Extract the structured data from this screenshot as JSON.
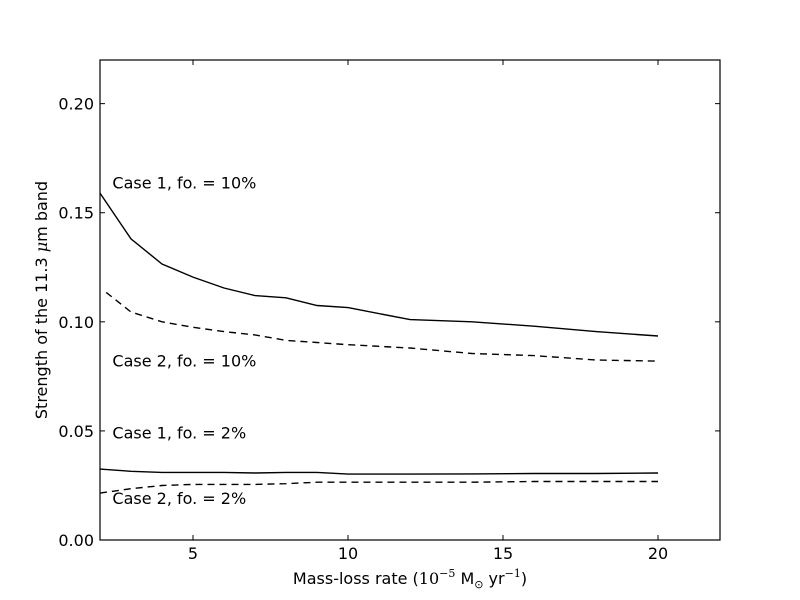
{
  "chart_data": {
    "type": "line",
    "title": "",
    "xlabel": {
      "prefix": "Mass-loss rate (",
      "base": "10",
      "exp": "−5",
      "unit_main": " M",
      "unit_sub": "⊙",
      "unit_yr": " yr",
      "exp2": "−1",
      "suffix": ")"
    },
    "ylabel": {
      "prefix": "Strength of the 11.3 ",
      "mu": "μ",
      "suffix": "m band"
    },
    "xlim": [
      2,
      22
    ],
    "ylim": [
      0,
      0.22
    ],
    "xticks": [
      5,
      10,
      15,
      20
    ],
    "xtick_labels": [
      "5",
      "10",
      "15",
      "20"
    ],
    "yticks": [
      0,
      0.05,
      0.1,
      0.15,
      0.2
    ],
    "ytick_labels": [
      "0.00",
      "0.05",
      "0.10",
      "0.15",
      "0.20"
    ],
    "grid": false,
    "series": [
      {
        "style": "solid",
        "x": [
          2,
          3,
          4,
          5,
          6,
          7,
          8,
          9,
          10,
          12,
          14,
          16,
          18,
          20
        ],
        "y": [
          0.159,
          0.138,
          0.1265,
          0.1205,
          0.1155,
          0.112,
          0.111,
          0.1075,
          0.1065,
          0.101,
          0.1,
          0.098,
          0.0955,
          0.0935
        ]
      },
      {
        "style": "dashed",
        "x": [
          2.2,
          3,
          4,
          5,
          6,
          7,
          8,
          9,
          10,
          12,
          14,
          16,
          18,
          20
        ],
        "y": [
          0.1135,
          0.1045,
          0.1,
          0.0975,
          0.0955,
          0.094,
          0.0915,
          0.0905,
          0.0895,
          0.088,
          0.0855,
          0.0845,
          0.0825,
          0.082
        ]
      },
      {
        "style": "solid",
        "x": [
          2,
          3,
          4,
          5,
          6,
          7,
          8,
          9,
          10,
          12,
          14,
          16,
          18,
          20
        ],
        "y": [
          0.0325,
          0.0315,
          0.031,
          0.031,
          0.031,
          0.0307,
          0.031,
          0.031,
          0.0302,
          0.0302,
          0.0303,
          0.0305,
          0.0305,
          0.0307
        ]
      },
      {
        "style": "dashed",
        "x": [
          2,
          3,
          4,
          5,
          6,
          7,
          8,
          9,
          10,
          12,
          14,
          16,
          18,
          20
        ],
        "y": [
          0.0215,
          0.0235,
          0.025,
          0.0255,
          0.0255,
          0.0255,
          0.0258,
          0.0265,
          0.0265,
          0.0265,
          0.0265,
          0.0268,
          0.0268,
          0.0268
        ]
      }
    ],
    "annotations": [
      {
        "text": "Case 1, fo. = 10%",
        "x": 2.4,
        "y": 0.161
      },
      {
        "text": "Case 2, fo. = 10%",
        "x": 2.4,
        "y": 0.0795
      },
      {
        "text": "Case 1, fo. = 2%",
        "x": 2.4,
        "y": 0.0465
      },
      {
        "text": "Case 2, fo. = 2%",
        "x": 2.4,
        "y": 0.0165
      }
    ]
  }
}
